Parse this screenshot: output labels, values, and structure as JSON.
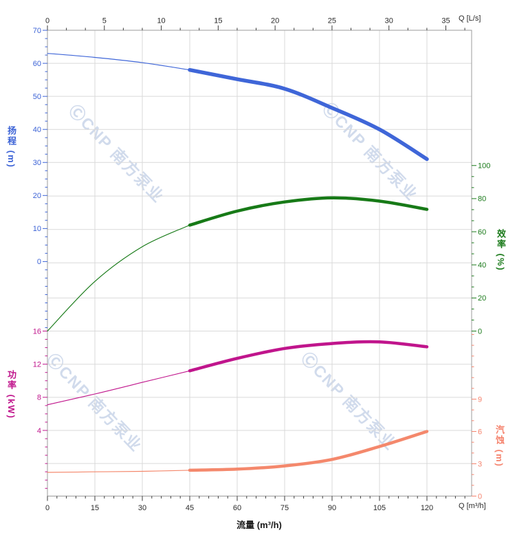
{
  "watermark": {
    "text": "ⒸCNP 南方泵业",
    "color": "rgba(172,190,221,0.55)"
  },
  "labels": {
    "top_unit": "Q [L/s]",
    "bottom_unit": "Q [m³/h]",
    "x_title": "流量 (m³/h)",
    "head_title": "扬程 (m)",
    "power_title": "功率 (kW)",
    "eff_title": "效率 (%)",
    "npsh_title": "汽蚀 (m)"
  },
  "colors": {
    "head": "#3f66d8",
    "head_label": "#3b62d6",
    "eff": "#177a17",
    "eff_label": "#1a7a1a",
    "power": "#c0158c",
    "power_label": "#c0158c",
    "npsh": "#f4886c",
    "npsh_label": "#f5836d",
    "grid": "#d9d9d9",
    "border": "#9b9b9b",
    "dark_tick": "#3a3a3a",
    "dark_label": "#2b2b2b"
  },
  "chart_data": {
    "type": "line",
    "title": "",
    "x_label_bottom": "流量 (m³/h)",
    "x_label_top": "Q [L/s]",
    "x_m3h": [
      0,
      15,
      30,
      45,
      60,
      75,
      90,
      105,
      120
    ],
    "duty_split_m3h": 45,
    "series": [
      {
        "name": "扬程",
        "unit": "m",
        "axis": "head",
        "values": [
          63,
          61.8,
          60.2,
          58,
          55.2,
          52.3,
          46.5,
          40,
          31
        ]
      },
      {
        "name": "效率",
        "unit": "%",
        "axis": "eff",
        "values": [
          0,
          30,
          51,
          64,
          72.5,
          78,
          80.5,
          78.5,
          73.5
        ]
      },
      {
        "name": "功率",
        "unit": "kW",
        "axis": "power",
        "values": [
          7.1,
          8.4,
          9.8,
          11.2,
          12.7,
          13.9,
          14.5,
          14.7,
          14.1
        ]
      },
      {
        "name": "汽蚀",
        "unit": "m",
        "axis": "npsh",
        "values": [
          2.2,
          2.25,
          2.3,
          2.4,
          2.5,
          2.8,
          3.4,
          4.6,
          6.0
        ]
      }
    ],
    "axes": {
      "top": {
        "unit": "L/s",
        "major": [
          0,
          5,
          10,
          15,
          20,
          25,
          30,
          35
        ],
        "minor_step": 1.6667,
        "range": [
          0,
          37.3
        ]
      },
      "bottom": {
        "unit": "m³/h",
        "major": [
          0,
          15,
          30,
          45,
          60,
          75,
          90,
          105,
          120
        ],
        "minor_step": 3,
        "range": [
          0,
          134
        ]
      },
      "head": {
        "major": [
          70,
          60,
          50,
          40,
          30,
          20,
          10,
          0
        ],
        "minor_step": 2.5,
        "range": [
          0,
          70
        ]
      },
      "eff": {
        "major": [
          100,
          80,
          60,
          40,
          20,
          0
        ],
        "minor_step": 6.667,
        "range": [
          0,
          100
        ]
      },
      "power": {
        "major": [
          16,
          12,
          8,
          4
        ],
        "minor_step": 1,
        "range": [
          4,
          16
        ]
      },
      "npsh": {
        "major": [
          9,
          6,
          3,
          0
        ],
        "minor_step": 1,
        "range": [
          0,
          9
        ]
      }
    },
    "grid": true,
    "legend": false
  }
}
